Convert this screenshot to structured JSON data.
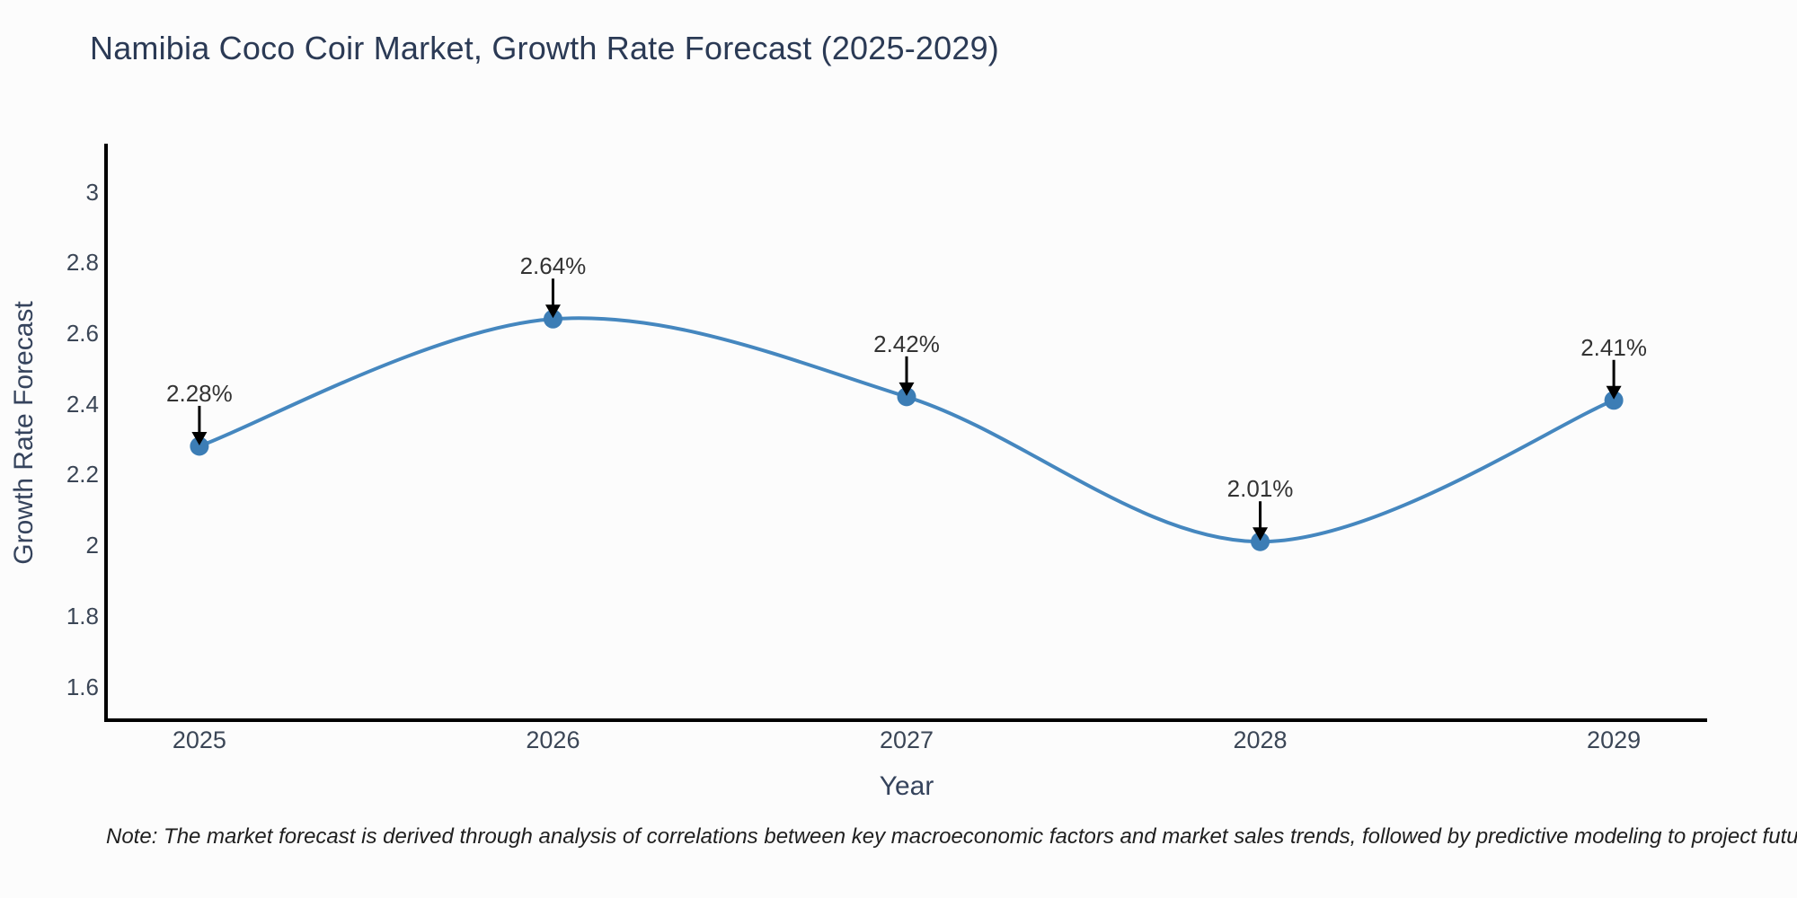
{
  "title": "Namibia Coco Coir Market, Growth Rate Forecast (2025-2029)",
  "note": "Note: The market forecast is derived through analysis of correlations between key macroeconomic factors and market sales trends, followed by predictive modeling to project future sales",
  "colors": {
    "line": "#4587bf",
    "marker": "#3c7db5",
    "axis": "#000000",
    "arrow": "#000000",
    "title_text": "#2b3a55",
    "tick_text": "#3b4656",
    "annotation_text": "#333333",
    "background": "#fcfcfc"
  },
  "chart_data": {
    "type": "line",
    "title": "Namibia Coco Coir Market, Growth Rate Forecast (2025-2029)",
    "xlabel": "Year",
    "ylabel": "Growth Rate Forecast",
    "x": [
      2025,
      2026,
      2027,
      2028,
      2029
    ],
    "values": [
      2.28,
      2.64,
      2.42,
      2.01,
      2.41
    ],
    "point_labels": [
      "2.28%",
      "2.64%",
      "2.42%",
      "2.01%",
      "2.41%"
    ],
    "xtick_labels": [
      "2025",
      "2026",
      "2027",
      "2028",
      "2029"
    ],
    "yticks": [
      1.6,
      1.8,
      2,
      2.2,
      2.4,
      2.6,
      2.8,
      3
    ],
    "ytick_labels": [
      "1.6",
      "1.8",
      "2",
      "2.2",
      "2.4",
      "2.6",
      "2.8",
      "3"
    ],
    "ylim": [
      1.505,
      3.136
    ],
    "xlim": [
      2024.736,
      2029.264
    ],
    "grid": false,
    "legend": "none",
    "curve": "smooth-spline",
    "marker": "circle",
    "annotation_arrows": true
  }
}
